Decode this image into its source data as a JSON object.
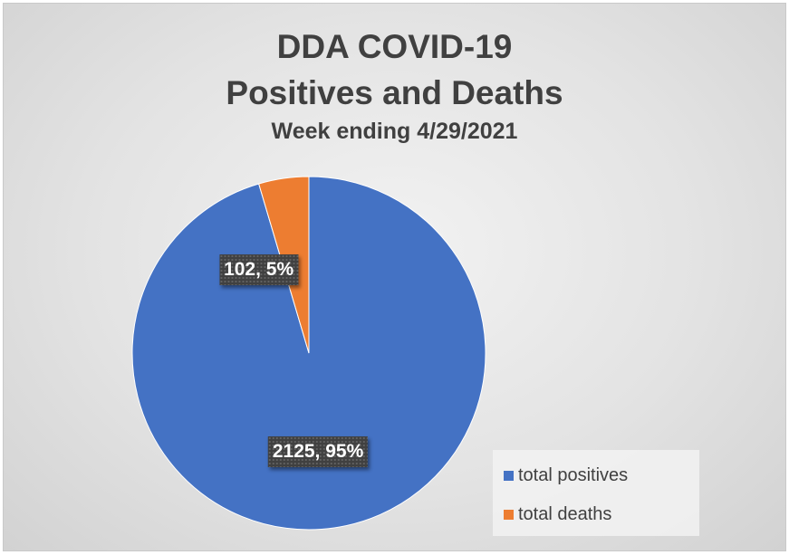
{
  "chart_data": {
    "type": "pie",
    "title_lines": [
      "DDA COVID-19",
      "Positives and Deaths"
    ],
    "subtitle": "Week ending 4/29/2021",
    "categories": [
      "total positives",
      "total deaths"
    ],
    "values": [
      2125,
      102
    ],
    "percents": [
      "95%",
      "5%"
    ],
    "data_labels": [
      "2125, 95%",
      "102, 5%"
    ],
    "colors": [
      "#4472C4",
      "#ED7D31"
    ],
    "legend_position": "bottom-right"
  }
}
